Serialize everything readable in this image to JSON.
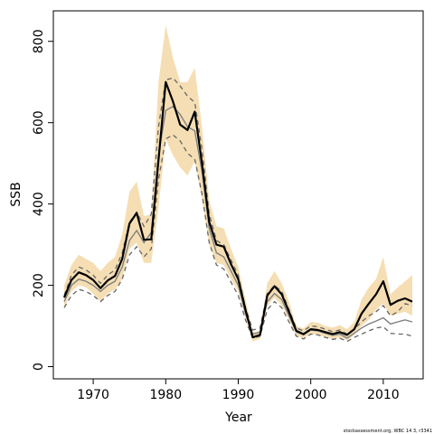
{
  "chart_data": {
    "type": "line",
    "xlabel": "Year",
    "ylabel": "SSB",
    "xlim": [
      1964.5,
      2015.5
    ],
    "ylim": [
      -30,
      875
    ],
    "x_ticks": [
      1970,
      1980,
      1990,
      2000,
      2010
    ],
    "y_ticks": [
      0,
      200,
      400,
      600,
      800
    ],
    "credit": "stockassessment.org, WBC 14 3, r3341",
    "grid": false,
    "legend": "none",
    "colors": {
      "band": "#f5deb3",
      "estimate": "#000000",
      "comparison": "#808080"
    },
    "x": [
      1966,
      1967,
      1968,
      1969,
      1970,
      1971,
      1972,
      1973,
      1974,
      1975,
      1976,
      1977,
      1978,
      1979,
      1980,
      1981,
      1982,
      1983,
      1984,
      1985,
      1986,
      1987,
      1988,
      1989,
      1990,
      1991,
      1992,
      1993,
      1994,
      1995,
      1996,
      1997,
      1998,
      1999,
      2000,
      2001,
      2002,
      2003,
      2004,
      2005,
      2006,
      2007,
      2008,
      2009,
      2010,
      2011,
      2012,
      2013,
      2014
    ],
    "estimate": [
      170,
      213,
      232,
      225,
      213,
      193,
      212,
      223,
      265,
      352,
      378,
      312,
      313,
      508,
      700,
      652,
      595,
      582,
      627,
      500,
      356,
      300,
      295,
      252,
      215,
      140,
      72,
      78,
      175,
      198,
      178,
      135,
      88,
      80,
      92,
      90,
      85,
      80,
      85,
      78,
      92,
      130,
      155,
      178,
      210,
      152,
      162,
      168,
      160
    ],
    "band_upper": [
      200,
      250,
      275,
      265,
      255,
      235,
      255,
      270,
      325,
      430,
      455,
      370,
      375,
      700,
      840,
      760,
      700,
      700,
      735,
      590,
      410,
      345,
      340,
      290,
      245,
      165,
      85,
      88,
      205,
      235,
      205,
      160,
      100,
      94,
      110,
      108,
      100,
      96,
      102,
      92,
      110,
      165,
      195,
      215,
      270,
      178,
      195,
      210,
      225
    ],
    "band_lower": [
      145,
      185,
      200,
      195,
      180,
      160,
      180,
      190,
      215,
      290,
      305,
      255,
      255,
      390,
      560,
      520,
      490,
      470,
      505,
      410,
      300,
      255,
      250,
      215,
      185,
      120,
      62,
      68,
      150,
      170,
      150,
      115,
      75,
      70,
      80,
      78,
      73,
      68,
      72,
      65,
      78,
      100,
      115,
      140,
      155,
      125,
      130,
      135,
      125
    ],
    "comparison_mean": [
      160,
      200,
      215,
      210,
      200,
      185,
      200,
      210,
      245,
      310,
      335,
      305,
      330,
      520,
      630,
      640,
      620,
      590,
      580,
      480,
      340,
      280,
      270,
      235,
      200,
      130,
      80,
      85,
      160,
      180,
      165,
      125,
      85,
      78,
      90,
      88,
      82,
      77,
      80,
      70,
      82,
      95,
      105,
      112,
      120,
      105,
      110,
      115,
      110
    ],
    "comparison_upper": [
      175,
      225,
      245,
      238,
      225,
      205,
      225,
      238,
      280,
      355,
      380,
      345,
      375,
      590,
      705,
      710,
      690,
      665,
      650,
      535,
      375,
      310,
      300,
      262,
      225,
      145,
      90,
      95,
      180,
      200,
      185,
      140,
      95,
      88,
      100,
      98,
      92,
      86,
      90,
      80,
      92,
      110,
      125,
      135,
      150,
      125,
      135,
      155,
      150
    ],
    "comparison_lower": [
      145,
      175,
      190,
      185,
      175,
      160,
      175,
      185,
      215,
      275,
      295,
      270,
      290,
      460,
      560,
      570,
      555,
      525,
      510,
      425,
      305,
      250,
      240,
      208,
      175,
      115,
      70,
      75,
      140,
      160,
      145,
      110,
      75,
      68,
      80,
      78,
      72,
      67,
      70,
      62,
      72,
      80,
      88,
      95,
      98,
      82,
      80,
      80,
      75
    ]
  }
}
